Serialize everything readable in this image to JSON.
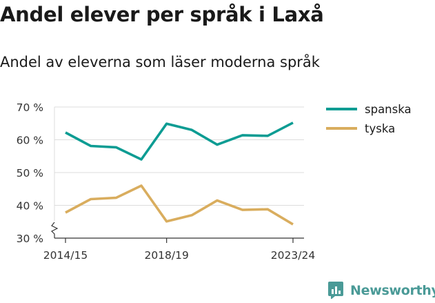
{
  "title": "Andel elever per språk i Laxå",
  "subtitle": "Andel av eleverna som läser moderna språk",
  "brand": {
    "name": "Newsworthy",
    "icon": "newsworthy-logo-icon",
    "color": "#4a9a97"
  },
  "chart_data": {
    "type": "line",
    "title": "Andel elever per språk i Laxå",
    "subtitle": "Andel av eleverna som läser moderna språk",
    "x": [
      "2014/15",
      "2015/16",
      "2016/17",
      "2017/18",
      "2018/19",
      "2019/20",
      "2020/21",
      "2021/22",
      "2022/23",
      "2023/24"
    ],
    "x_tick_labels": [
      "2014/15",
      "2018/19",
      "2023/24"
    ],
    "ylim": [
      30,
      70
    ],
    "y_ticks": [
      30,
      40,
      50,
      60,
      70
    ],
    "y_tick_labels": [
      "30 %",
      "40 %",
      "50 %",
      "60 %",
      "70 %"
    ],
    "y_axis_break": true,
    "grid": true,
    "legend_position": "top-right",
    "series": [
      {
        "name": "spanska",
        "color": "#0d9c93",
        "values": [
          62.2,
          58.1,
          57.7,
          54.0,
          64.9,
          63.0,
          58.5,
          61.4,
          61.2,
          65.2
        ]
      },
      {
        "name": "tyska",
        "color": "#d9ad5e",
        "values": [
          37.8,
          41.9,
          42.3,
          46.0,
          35.1,
          37.0,
          41.5,
          38.6,
          38.8,
          34.2
        ]
      }
    ]
  }
}
